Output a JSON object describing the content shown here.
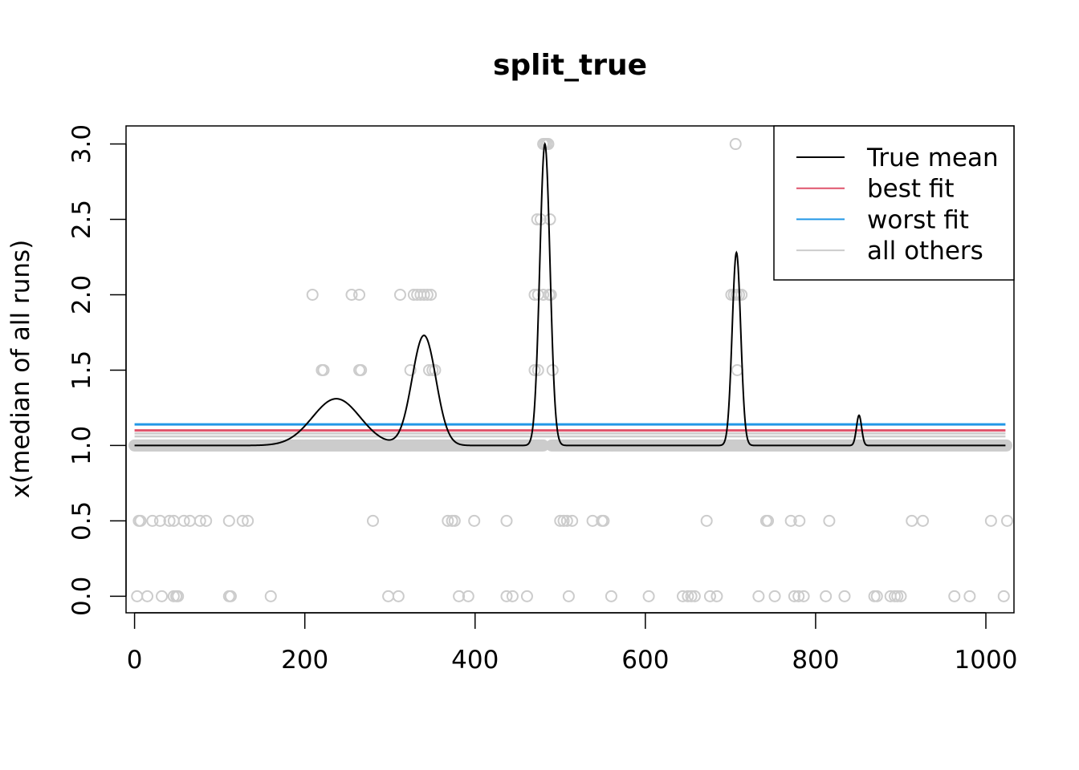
{
  "chart_data": {
    "type": "scatter",
    "title": "split_true",
    "xlabel": "",
    "ylabel": "x(median of all runs)",
    "xlim": [
      -10,
      1033
    ],
    "ylim": [
      -0.11,
      3.12
    ],
    "x_ticks": [
      0,
      200,
      400,
      600,
      800,
      1000
    ],
    "x_tick_labels": [
      "0",
      "200",
      "400",
      "600",
      "800",
      "1000"
    ],
    "y_ticks": [
      0.0,
      0.5,
      1.0,
      1.5,
      2.0,
      2.5,
      3.0
    ],
    "y_tick_labels": [
      "0.0",
      "0.5",
      "1.0",
      "1.5",
      "2.0",
      "2.5",
      "3.0"
    ],
    "grid": false,
    "legend_position": "top-right",
    "legend": [
      {
        "label": "True mean",
        "color": "#000000"
      },
      {
        "label": "best fit",
        "color": "#DF536B"
      },
      {
        "label": "worst fit",
        "color": "#2297E6"
      },
      {
        "label": "all others",
        "color": "#CCCCCC"
      }
    ],
    "colors": {
      "points": "#CCCCCC",
      "true_mean": "#000000",
      "best_fit": "#DF536B",
      "worst_fit": "#2297E6",
      "all_others": "#CCCCCC"
    },
    "x_range": [
      0,
      1023
    ],
    "baseline_value": 1.0,
    "true_mean_bumps": [
      {
        "center": 237,
        "height": 0.31,
        "width": 28
      },
      {
        "center": 340,
        "height": 0.73,
        "width": 14
      },
      {
        "center": 482,
        "height": 2.0,
        "width": 6
      },
      {
        "center": 707,
        "height": 1.28,
        "width": 5
      },
      {
        "center": 851,
        "height": 0.2,
        "width": 3
      }
    ],
    "best_fit_value": 1.1,
    "worst_fit_value": 1.14,
    "all_others_values": [
      1.06,
      1.08
    ],
    "points_by_value": {
      "3.0": [
        480,
        482,
        484,
        486,
        706
      ],
      "2.5": [
        473,
        477,
        488
      ],
      "2.0": [
        209,
        255,
        264,
        312,
        328,
        332,
        336,
        340,
        344,
        348,
        470,
        474,
        480,
        487,
        489,
        701,
        704,
        707,
        710,
        713
      ],
      "1.5": [
        220,
        222,
        264,
        266,
        324,
        346,
        350,
        353,
        470,
        474,
        491,
        708
      ],
      "0.5": [
        5,
        7,
        21,
        30,
        41,
        46,
        58,
        65,
        77,
        84,
        111,
        127,
        133,
        280,
        368,
        373,
        376,
        399,
        437,
        500,
        504,
        508,
        514,
        538,
        549,
        551,
        672,
        742,
        744,
        771,
        781,
        816,
        913,
        926,
        1006,
        1025
      ],
      "0.0": [
        3,
        15,
        32,
        46,
        49,
        51,
        111,
        113,
        160,
        298,
        310,
        381,
        392,
        437,
        444,
        461,
        510,
        560,
        604,
        644,
        650,
        654,
        658,
        676,
        684,
        733,
        752,
        775,
        780,
        786,
        812,
        834,
        869,
        872,
        888,
        893,
        896,
        900,
        963,
        981,
        1021
      ]
    },
    "dense_points_at_1": {
      "value": 1.0,
      "step": 1.5,
      "ranges": [
        [
          0,
          480
        ],
        [
          490,
          1025
        ]
      ]
    }
  }
}
